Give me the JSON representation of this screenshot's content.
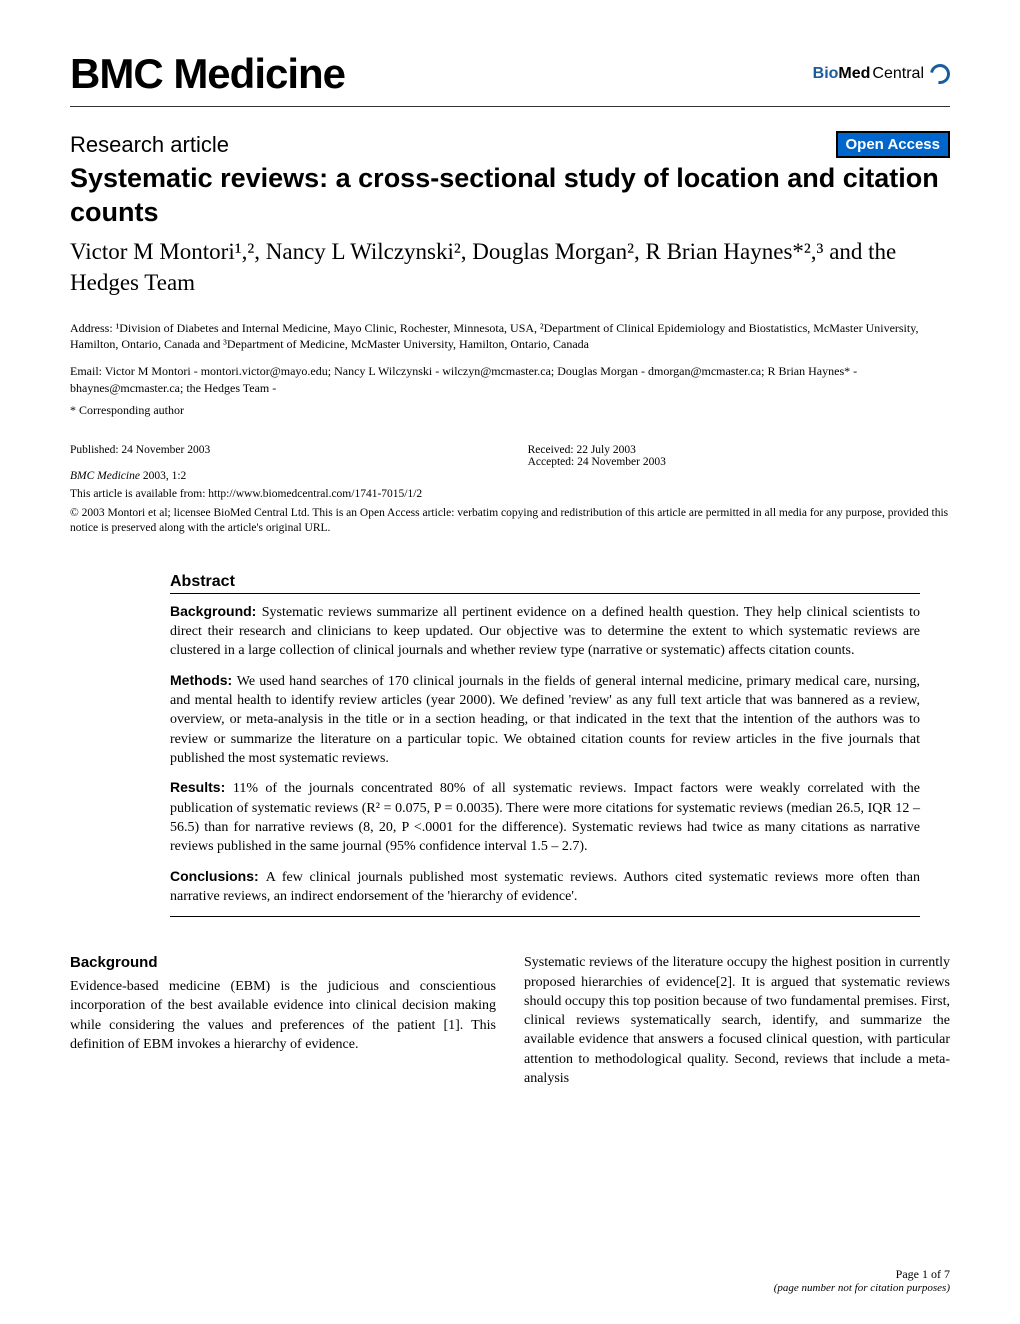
{
  "header": {
    "journal_title": "BMC Medicine",
    "publisher_bio": "Bio",
    "publisher_med": "Med",
    "publisher_central": " Central"
  },
  "meta": {
    "article_type": "Research article",
    "open_access": "Open Access"
  },
  "title": "Systematic reviews: a cross-sectional study of location and citation counts",
  "authors_line": "Victor M Montori¹,², Nancy L Wilczynski², Douglas Morgan², R Brian Haynes*²,³ and the Hedges Team",
  "affiliations": "Address: ¹Division of Diabetes and Internal Medicine, Mayo Clinic, Rochester, Minnesota, USA, ²Department of Clinical Epidemiology and Biostatistics, McMaster University, Hamilton, Ontario, Canada and ³Department of Medicine, McMaster University, Hamilton, Ontario, Canada",
  "emails": "Email: Victor M Montori - montori.victor@mayo.edu; Nancy L Wilczynski - wilczyn@mcmaster.ca; Douglas Morgan - dmorgan@mcmaster.ca; R Brian Haynes* - bhaynes@mcmaster.ca; the Hedges Team -",
  "corresponding": "* Corresponding author",
  "pub": {
    "published": "Published: 24 November 2003",
    "received": "Received: 22 July 2003",
    "accepted": "Accepted: 24 November 2003",
    "citation_journal": "BMC Medicine",
    "citation_rest": " 2003, 1:2",
    "available_prefix": "This article is available from: ",
    "available_url": "http://www.biomedcentral.com/1741-7015/1/2",
    "copyright": "© 2003 Montori et al; licensee BioMed Central Ltd. This is an Open Access article: verbatim copying and redistribution of this article are permitted in all media for any purpose, provided this notice is preserved along with the article's original URL."
  },
  "abstract": {
    "heading": "Abstract",
    "background_label": "Background: ",
    "background": "Systematic reviews summarize all pertinent evidence on a defined health question. They help clinical scientists to direct their research and clinicians to keep updated. Our objective was to determine the extent to which systematic reviews are clustered in a large collection of clinical journals and whether review type (narrative or systematic) affects citation counts.",
    "methods_label": "Methods: ",
    "methods": "We used hand searches of 170 clinical journals in the fields of general internal medicine, primary medical care, nursing, and mental health to identify review articles (year 2000). We defined 'review' as any full text article that was bannered as a review, overview, or meta-analysis in the title or in a section heading, or that indicated in the text that the intention of the authors was to review or summarize the literature on a particular topic. We obtained citation counts for review articles in the five journals that published the most systematic reviews.",
    "results_label": "Results: ",
    "results": "11% of the journals concentrated 80% of all systematic reviews. Impact factors were weakly correlated with the publication of systematic reviews (R² = 0.075, P = 0.0035). There were more citations for systematic reviews (median 26.5, IQR 12 – 56.5) than for narrative reviews (8, 20, P <.0001 for the difference). Systematic reviews had twice as many citations as narrative reviews published in the same journal (95% confidence interval 1.5 – 2.7).",
    "conclusions_label": "Conclusions: ",
    "conclusions": "A few clinical journals published most systematic reviews. Authors cited systematic reviews more often than narrative reviews, an indirect endorsement of the 'hierarchy of evidence'."
  },
  "body": {
    "background_heading": "Background",
    "col1": "Evidence-based medicine (EBM) is the judicious and conscientious incorporation of the best available evidence into clinical decision making while considering the values and preferences of the patient [1]. This definition of EBM invokes a hierarchy of evidence.",
    "col2": "Systematic reviews of the literature occupy the highest position in currently proposed hierarchies of evidence[2]. It is argued that systematic reviews should occupy this top position because of two fundamental premises. First, clinical reviews systematically search, identify, and summarize the available evidence that answers a focused clinical question, with particular attention to methodological quality. Second, reviews that include a meta-analysis"
  },
  "footer": {
    "page": "Page 1 of 7",
    "note": "(page number not for citation purposes)"
  },
  "colors": {
    "link_blue": "#0066cc",
    "logo_blue": "#1a5c9e",
    "text": "#000000",
    "background": "#ffffff"
  }
}
